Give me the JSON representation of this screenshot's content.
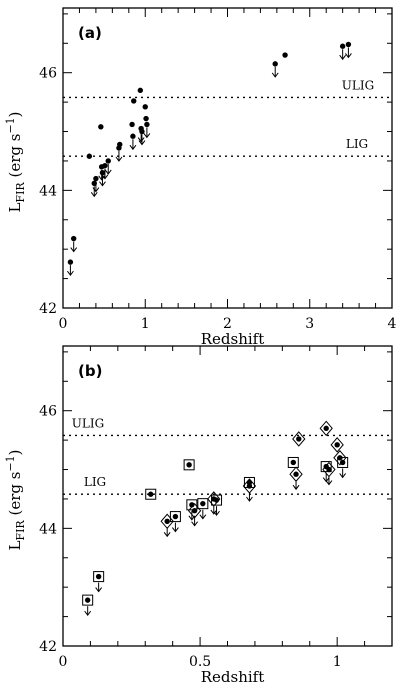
{
  "chart_data": [
    {
      "type": "scatter",
      "panel_label": "(a)",
      "xlabel": "Redshift",
      "ylabel": "L_FIR (erg s^-1)",
      "xlim": [
        0,
        4
      ],
      "ylim": [
        42,
        47.1
      ],
      "xticks": [
        "0",
        "1",
        "2",
        "3",
        "4"
      ],
      "yticks": [
        "42",
        "44",
        "46"
      ],
      "reference_lines": [
        {
          "label": "ULIG",
          "y": 45.58
        },
        {
          "label": "LIG",
          "y": 44.58
        }
      ],
      "points": [
        {
          "x": 0.09,
          "y": 42.78,
          "upper_limit": true
        },
        {
          "x": 0.13,
          "y": 43.18,
          "upper_limit": true
        },
        {
          "x": 0.32,
          "y": 44.58,
          "upper_limit": false
        },
        {
          "x": 0.38,
          "y": 44.12,
          "upper_limit": true
        },
        {
          "x": 0.4,
          "y": 44.2,
          "upper_limit": true
        },
        {
          "x": 0.46,
          "y": 45.08,
          "upper_limit": false
        },
        {
          "x": 0.47,
          "y": 44.4,
          "upper_limit": true
        },
        {
          "x": 0.48,
          "y": 44.3,
          "upper_limit": true
        },
        {
          "x": 0.51,
          "y": 44.42,
          "upper_limit": true
        },
        {
          "x": 0.55,
          "y": 44.5,
          "upper_limit": true
        },
        {
          "x": 0.68,
          "y": 44.72,
          "upper_limit": true
        },
        {
          "x": 0.69,
          "y": 44.78,
          "upper_limit": false
        },
        {
          "x": 0.84,
          "y": 45.12,
          "upper_limit": false
        },
        {
          "x": 0.85,
          "y": 44.92,
          "upper_limit": true
        },
        {
          "x": 0.86,
          "y": 45.52,
          "upper_limit": false
        },
        {
          "x": 0.94,
          "y": 45.7,
          "upper_limit": false
        },
        {
          "x": 0.95,
          "y": 45.05,
          "upper_limit": true
        },
        {
          "x": 0.96,
          "y": 45.0,
          "upper_limit": true
        },
        {
          "x": 1.0,
          "y": 45.42,
          "upper_limit": false
        },
        {
          "x": 1.01,
          "y": 45.22,
          "upper_limit": false
        },
        {
          "x": 1.02,
          "y": 45.12,
          "upper_limit": true
        },
        {
          "x": 2.58,
          "y": 46.15,
          "upper_limit": true
        },
        {
          "x": 2.7,
          "y": 46.3,
          "upper_limit": false
        },
        {
          "x": 3.4,
          "y": 46.45,
          "upper_limit": true
        },
        {
          "x": 3.47,
          "y": 46.48,
          "upper_limit": true
        }
      ]
    },
    {
      "type": "scatter",
      "panel_label": "(b)",
      "xlabel": "Redshift",
      "ylabel": "L_FIR (erg s^-1)",
      "xlim": [
        0,
        1.2
      ],
      "ylim": [
        42,
        47.1
      ],
      "xticks": [
        "0",
        "0.5",
        "1"
      ],
      "yticks": [
        "42",
        "44",
        "46"
      ],
      "reference_lines": [
        {
          "label": "ULIG",
          "y": 45.58
        },
        {
          "label": "LIG",
          "y": 44.58
        }
      ],
      "points": [
        {
          "x": 0.09,
          "y": 42.78,
          "marker": "square",
          "upper_limit": true
        },
        {
          "x": 0.13,
          "y": 43.18,
          "marker": "square",
          "upper_limit": true
        },
        {
          "x": 0.32,
          "y": 44.58,
          "marker": "square",
          "upper_limit": false
        },
        {
          "x": 0.38,
          "y": 44.12,
          "marker": "diamond",
          "upper_limit": true
        },
        {
          "x": 0.41,
          "y": 44.2,
          "marker": "square",
          "upper_limit": true
        },
        {
          "x": 0.46,
          "y": 45.08,
          "marker": "square",
          "upper_limit": false
        },
        {
          "x": 0.47,
          "y": 44.4,
          "marker": "square",
          "upper_limit": true
        },
        {
          "x": 0.48,
          "y": 44.3,
          "marker": "diamond",
          "upper_limit": true
        },
        {
          "x": 0.51,
          "y": 44.42,
          "marker": "square",
          "upper_limit": true
        },
        {
          "x": 0.55,
          "y": 44.5,
          "marker": "diamond",
          "upper_limit": true
        },
        {
          "x": 0.56,
          "y": 44.48,
          "marker": "square",
          "upper_limit": true
        },
        {
          "x": 0.68,
          "y": 44.72,
          "marker": "diamond",
          "upper_limit": true
        },
        {
          "x": 0.68,
          "y": 44.78,
          "marker": "square",
          "upper_limit": false
        },
        {
          "x": 0.84,
          "y": 45.12,
          "marker": "square",
          "upper_limit": false
        },
        {
          "x": 0.85,
          "y": 44.92,
          "marker": "diamond",
          "upper_limit": true
        },
        {
          "x": 0.86,
          "y": 45.52,
          "marker": "diamond",
          "upper_limit": false
        },
        {
          "x": 0.96,
          "y": 45.7,
          "marker": "diamond",
          "upper_limit": false
        },
        {
          "x": 0.96,
          "y": 45.05,
          "marker": "square",
          "upper_limit": true
        },
        {
          "x": 0.97,
          "y": 45.0,
          "marker": "diamond",
          "upper_limit": true
        },
        {
          "x": 1.0,
          "y": 45.42,
          "marker": "diamond",
          "upper_limit": false
        },
        {
          "x": 1.01,
          "y": 45.2,
          "marker": "diamond",
          "upper_limit": false
        },
        {
          "x": 1.02,
          "y": 45.12,
          "marker": "square",
          "upper_limit": true
        }
      ]
    }
  ]
}
